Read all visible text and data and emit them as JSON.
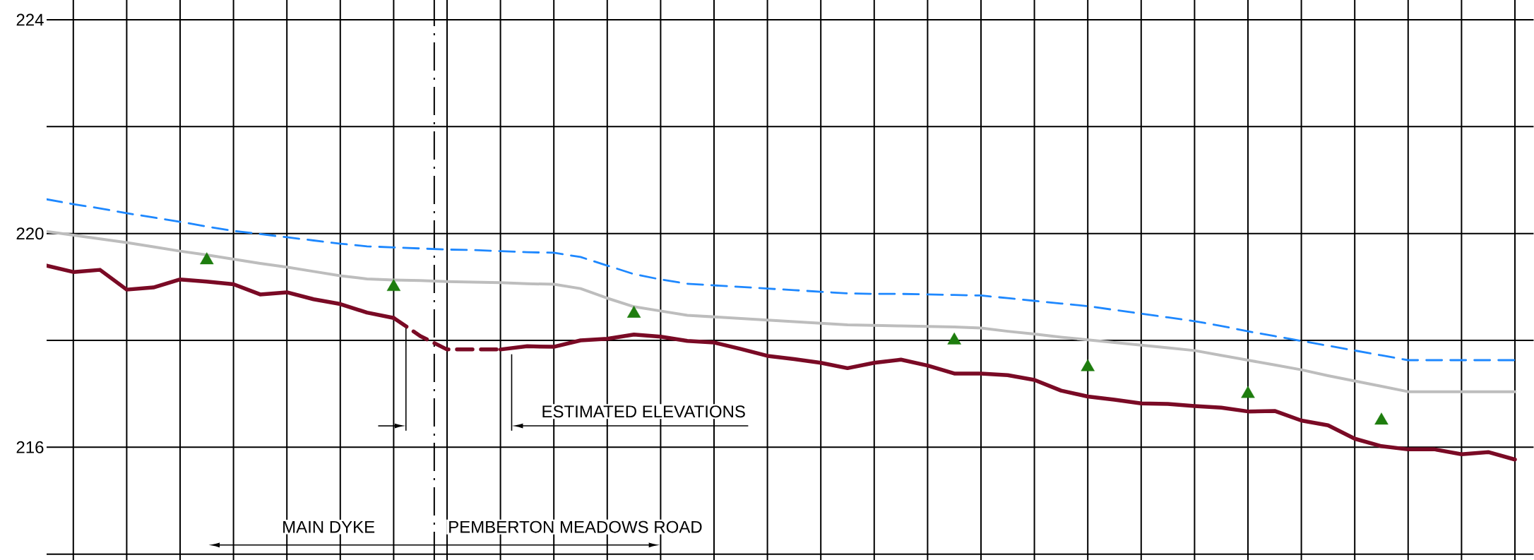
{
  "chart_data": {
    "type": "line",
    "categories": [
      null,
      null,
      null,
      null,
      null,
      null,
      null,
      null,
      null,
      null,
      null,
      null,
      null,
      null,
      null,
      null,
      null,
      null,
      null,
      null,
      null,
      null,
      null,
      null,
      null,
      null,
      null,
      null,
      null,
      null,
      null,
      null,
      null,
      null,
      null,
      null,
      null,
      null,
      null,
      null,
      null,
      null,
      null,
      null,
      null,
      null,
      null,
      null,
      null,
      null,
      null,
      null,
      null,
      null,
      null,
      null
    ],
    "ylim": [
      213.89,
      224.37
    ],
    "yticks": [
      {
        "value": 214,
        "label": null
      },
      216,
      {
        "value": 218,
        "label": null
      },
      220,
      {
        "value": 222,
        "label": null
      },
      224
    ],
    "grid": true,
    "tick_labels": "y",
    "series": [
      {
        "color": "#7a0a25",
        "values": [
          219.4,
          219.28,
          219.32,
          218.95,
          218.99,
          219.14,
          219.1,
          219.05,
          218.86,
          218.9,
          218.77,
          218.68,
          218.52,
          218.42,
          null,
          null,
          null,
          217.83,
          217.89,
          217.88,
          218.0,
          218.03,
          218.11,
          218.07,
          217.99,
          217.96,
          217.84,
          217.71,
          217.65,
          217.58,
          217.48,
          217.58,
          217.64,
          217.53,
          217.38,
          217.38,
          217.35,
          217.26,
          217.06,
          216.95,
          216.89,
          216.82,
          216.81,
          216.77,
          216.74,
          216.67,
          216.68,
          216.5,
          216.41,
          216.16,
          216.02,
          215.96,
          215.96,
          215.87,
          215.91,
          215.77
        ]
      },
      {
        "color": "#7a0a25",
        "line_style": "dashed",
        "values": [
          null,
          null,
          null,
          null,
          null,
          null,
          null,
          null,
          null,
          null,
          null,
          null,
          null,
          218.42,
          218.08,
          217.83,
          217.83,
          217.83,
          null,
          null,
          null,
          null,
          null,
          null,
          null,
          null,
          null,
          null,
          null,
          null,
          null,
          null,
          null,
          null,
          null,
          null,
          null,
          null,
          null,
          null,
          null,
          null,
          null,
          null,
          null,
          null,
          null,
          null,
          null,
          null,
          null,
          null,
          null,
          null,
          null,
          null
        ]
      },
      {
        "color": "#bdbdbd",
        "values": [
          220.04,
          219.97,
          219.9,
          219.83,
          219.75,
          219.67,
          219.6,
          219.52,
          219.44,
          219.37,
          219.29,
          219.21,
          219.15,
          219.13,
          219.12,
          219.1,
          219.09,
          219.08,
          219.06,
          219.05,
          218.97,
          218.79,
          218.63,
          218.55,
          218.47,
          218.44,
          218.41,
          218.38,
          218.35,
          218.32,
          218.29,
          218.28,
          218.27,
          218.26,
          218.25,
          218.23,
          218.17,
          218.12,
          218.06,
          218.01,
          217.96,
          217.91,
          217.86,
          217.81,
          217.72,
          217.63,
          217.54,
          217.45,
          217.34,
          217.24,
          217.14,
          217.04,
          217.04,
          217.04,
          217.04,
          217.04
        ]
      },
      {
        "color": "#1e88ff",
        "line_style": "dashed",
        "values": [
          220.64,
          220.55,
          220.47,
          220.38,
          220.3,
          220.22,
          220.13,
          220.05,
          219.99,
          219.93,
          219.87,
          219.81,
          219.76,
          219.74,
          219.72,
          219.7,
          219.69,
          219.67,
          219.65,
          219.64,
          219.56,
          219.4,
          219.24,
          219.14,
          219.06,
          219.03,
          219.0,
          218.97,
          218.94,
          218.91,
          218.88,
          218.87,
          218.87,
          218.86,
          218.85,
          218.84,
          218.79,
          218.74,
          218.69,
          218.64,
          218.57,
          218.5,
          218.43,
          218.36,
          218.27,
          218.17,
          218.08,
          217.99,
          217.9,
          217.81,
          217.72,
          217.63,
          217.63,
          217.63,
          217.63,
          217.63
        ]
      },
      {
        "type": "scatter",
        "color": "#1e7d0e",
        "marker": "triangle",
        "values": [
          null,
          null,
          null,
          null,
          null,
          null,
          219.5,
          null,
          null,
          null,
          null,
          null,
          null,
          219.0,
          null,
          null,
          null,
          null,
          null,
          null,
          null,
          null,
          218.5,
          null,
          null,
          null,
          null,
          null,
          null,
          null,
          null,
          null,
          null,
          null,
          218.0,
          null,
          null,
          null,
          null,
          217.5,
          null,
          null,
          null,
          null,
          null,
          217.0,
          null,
          null,
          null,
          null,
          216.5,
          null,
          null,
          null,
          null,
          null
        ]
      }
    ],
    "annotations": [
      "MAIN DYKE",
      "PEMBERTON MEADOWS ROAD",
      "ESTIMATED ELEVATIONS"
    ]
  }
}
